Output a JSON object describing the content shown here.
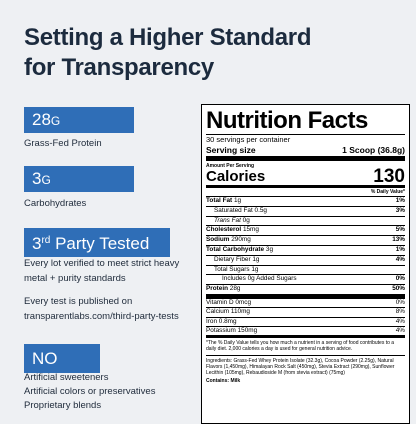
{
  "header": {
    "title_line1": "Setting a Higher Standard",
    "title_line2": "for Transparency"
  },
  "highlights": [
    {
      "badge_main": "28",
      "badge_small": "G",
      "lines": [
        "Grass-Fed Protein"
      ]
    },
    {
      "badge_main": "3",
      "badge_small": "G",
      "lines": [
        "Carbohydrates"
      ]
    },
    {
      "badge_main": "3",
      "badge_sup": "rd",
      "badge_rest": " Party Tested",
      "lines": [
        "Every lot verified to meet strict heavy",
        "metal + purity standards",
        "Every test is published on",
        "transparentlabs.com/third-party-tests"
      ]
    },
    {
      "badge_main": "NO",
      "lines": [
        "Artificial sweeteners",
        "Artificial colors or preservatives",
        "Proprietary blends"
      ]
    }
  ],
  "label": {
    "title": "Nutrition Facts",
    "servings": "30 servings per container",
    "serving_size_label": "Serving size",
    "serving_size_value": "1 Scoop (36.8g)",
    "amount_per_serving": "Amount Per Serving",
    "calories_label": "Calories",
    "calories_value": "130",
    "dv_header": "% Daily Value*",
    "rows": [
      [
        "Total Fat",
        "1g",
        "1%"
      ],
      [
        "Saturated Fat",
        "0.5g",
        "3%"
      ],
      [
        "Trans Fat",
        "0g"
      ],
      [
        "Cholesterol",
        "15mg",
        "5%"
      ],
      [
        "Sodium",
        "290mg",
        "13%"
      ],
      [
        "Total Carbohydrate",
        "3g",
        "1%"
      ],
      [
        "Dietary Fiber",
        "1g",
        "4%"
      ],
      [
        "Total Sugars",
        "1g"
      ],
      [
        "Includes 0g Added Sugars",
        "0%"
      ],
      [
        "Protein",
        "28g",
        "50%"
      ]
    ],
    "vitamins": [
      [
        "Vitamin D",
        "0mcg",
        "0%"
      ],
      [
        "Calcium",
        "110mg",
        "8%"
      ],
      [
        "Iron",
        "0.8mg",
        "4%"
      ],
      [
        "Potassium",
        "150mg",
        "4%"
      ]
    ],
    "footnote": "*The % Daily Value tells you how much a nutrient in a serving of food contributes to a daily diet. 2,000 calories a day is used for general nutrition advice.",
    "ingredients": "Ingredients: Grass-Fed Whey Protein Isolate (32.3g), Cocoa Powder (2.25g), Natural Flavors (1,450mg), Himalayan Rock Salt (450mg), Stevia Extract (290mg), Sunflower Lecithin (105mg), Rebaudioside M (from stevia extract) (75mg)",
    "contains": "Contains: Milk"
  }
}
